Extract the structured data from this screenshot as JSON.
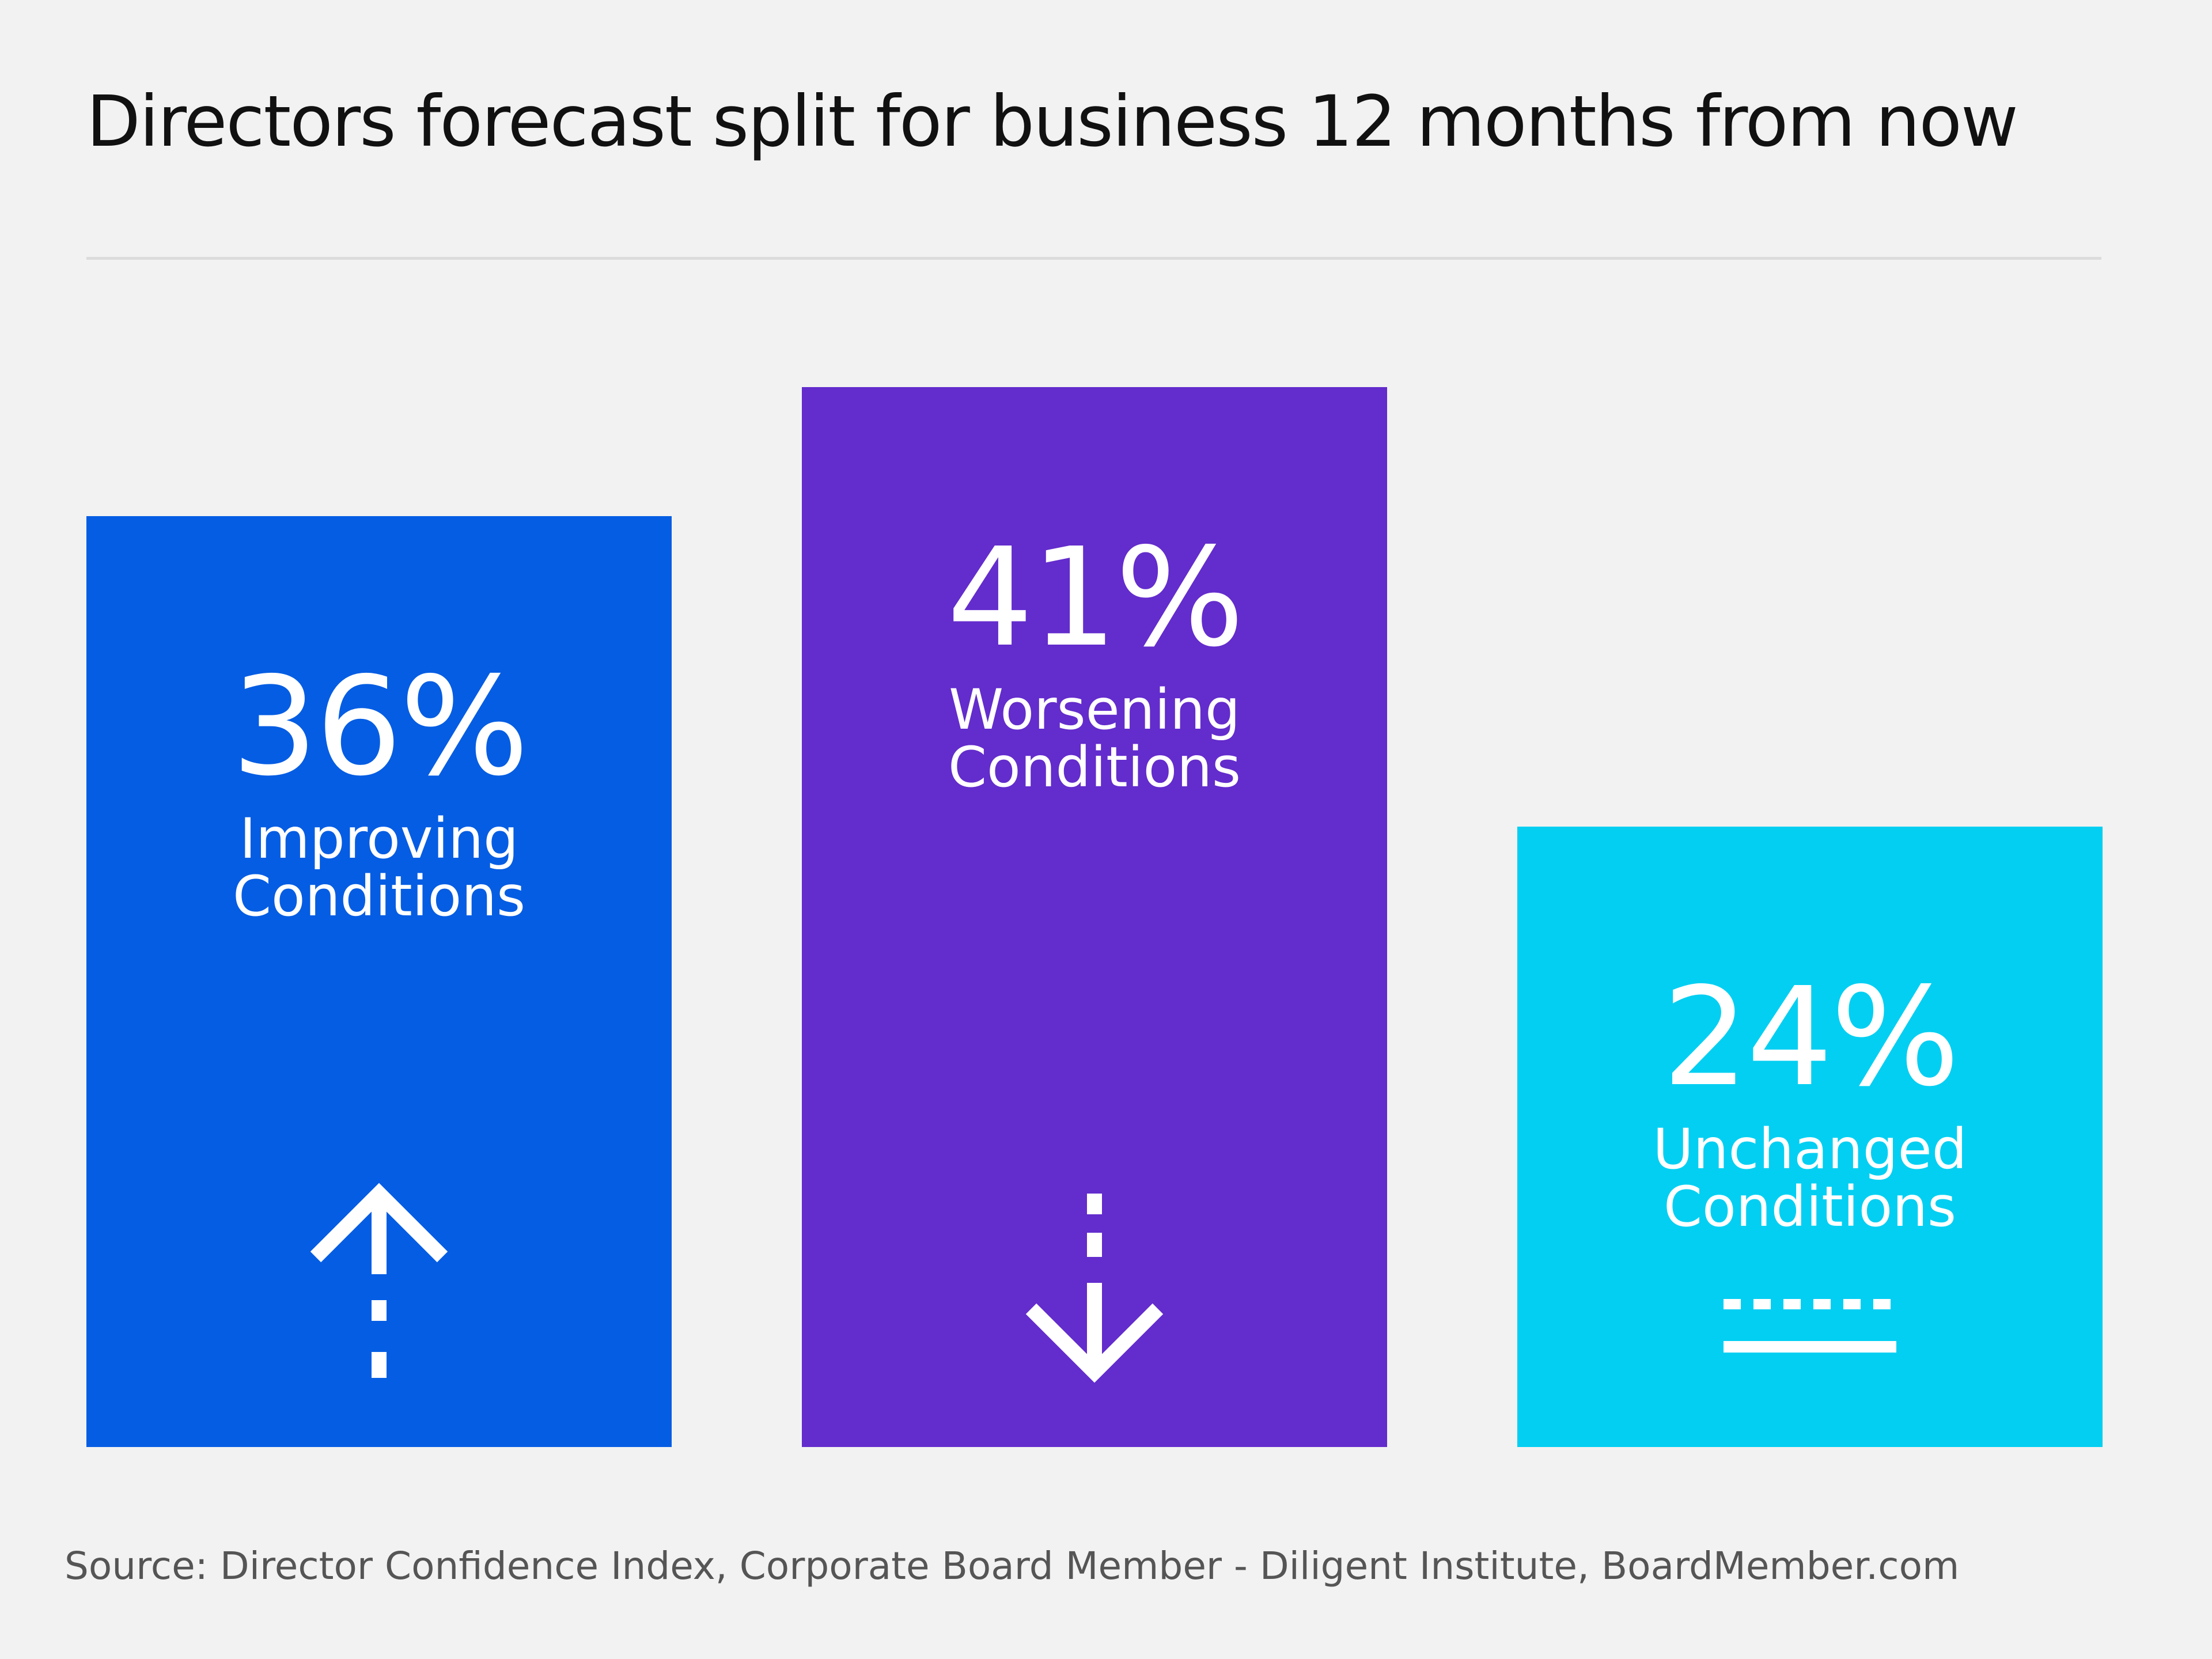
{
  "chart_data": {
    "type": "bar",
    "title": "Directors forecast split for business 12 months from now",
    "categories": [
      "Improving Conditions",
      "Worsening Conditions",
      "Unchanged Conditions"
    ],
    "label_lines": [
      [
        "Improving",
        "Conditions"
      ],
      [
        "Worsening",
        "Conditions"
      ],
      [
        "Unchanged",
        "Conditions"
      ]
    ],
    "values": [
      36,
      41,
      24
    ],
    "value_labels": [
      "36%",
      "41%",
      "24%"
    ],
    "colors": [
      "#055de3",
      "#632ccc",
      "#02cff2"
    ],
    "icons": [
      "arrow-up-icon",
      "arrow-down-icon",
      "flat-line-icon"
    ],
    "ylim": [
      0,
      41
    ],
    "grid": false,
    "xlabel": "",
    "ylabel": ""
  },
  "source": "Source: Director Confidence Index, Corporate Board Member - Diligent Institute, BoardMember.com"
}
